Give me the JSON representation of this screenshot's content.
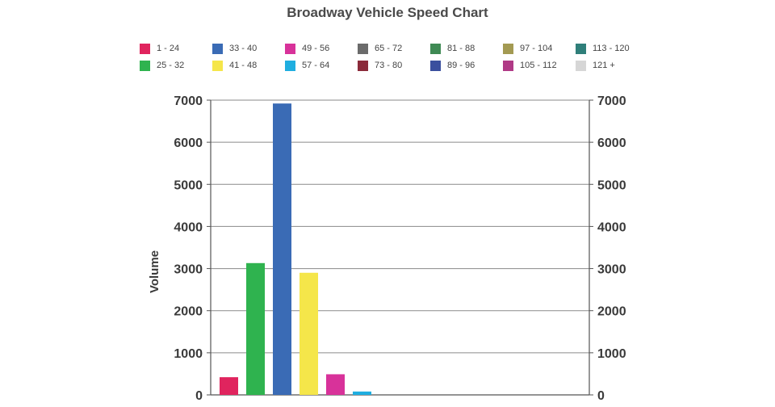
{
  "chart_data": {
    "type": "bar",
    "title": "Broadway Vehicle Speed Chart",
    "xlabel": "",
    "ylabel": "Volume",
    "ylim": [
      0,
      7000
    ],
    "yticks": [
      0,
      1000,
      2000,
      3000,
      4000,
      5000,
      6000,
      7000
    ],
    "secondary_y_axis": true,
    "grid": "horizontal",
    "legend_position": "top",
    "categories": [
      "1 - 24",
      "25 - 32",
      "33 - 40",
      "41 - 48",
      "49 - 56",
      "57 - 64",
      "65 - 72",
      "73 - 80",
      "81 - 88",
      "89 - 96",
      "97 - 104",
      "105 - 112",
      "113 - 120",
      "121 +"
    ],
    "values": [
      420,
      3130,
      6920,
      2900,
      490,
      80,
      0,
      0,
      0,
      0,
      0,
      0,
      0,
      0
    ],
    "colors": [
      "#e0245e",
      "#2fb34f",
      "#3a6bb5",
      "#f5e64a",
      "#d8329a",
      "#1faee0",
      "#6b6b6b",
      "#8b2a3a",
      "#3f8a54",
      "#3a4f9e",
      "#a39a52",
      "#b03a86",
      "#2f7f7a",
      "#d6d6d6"
    ]
  }
}
